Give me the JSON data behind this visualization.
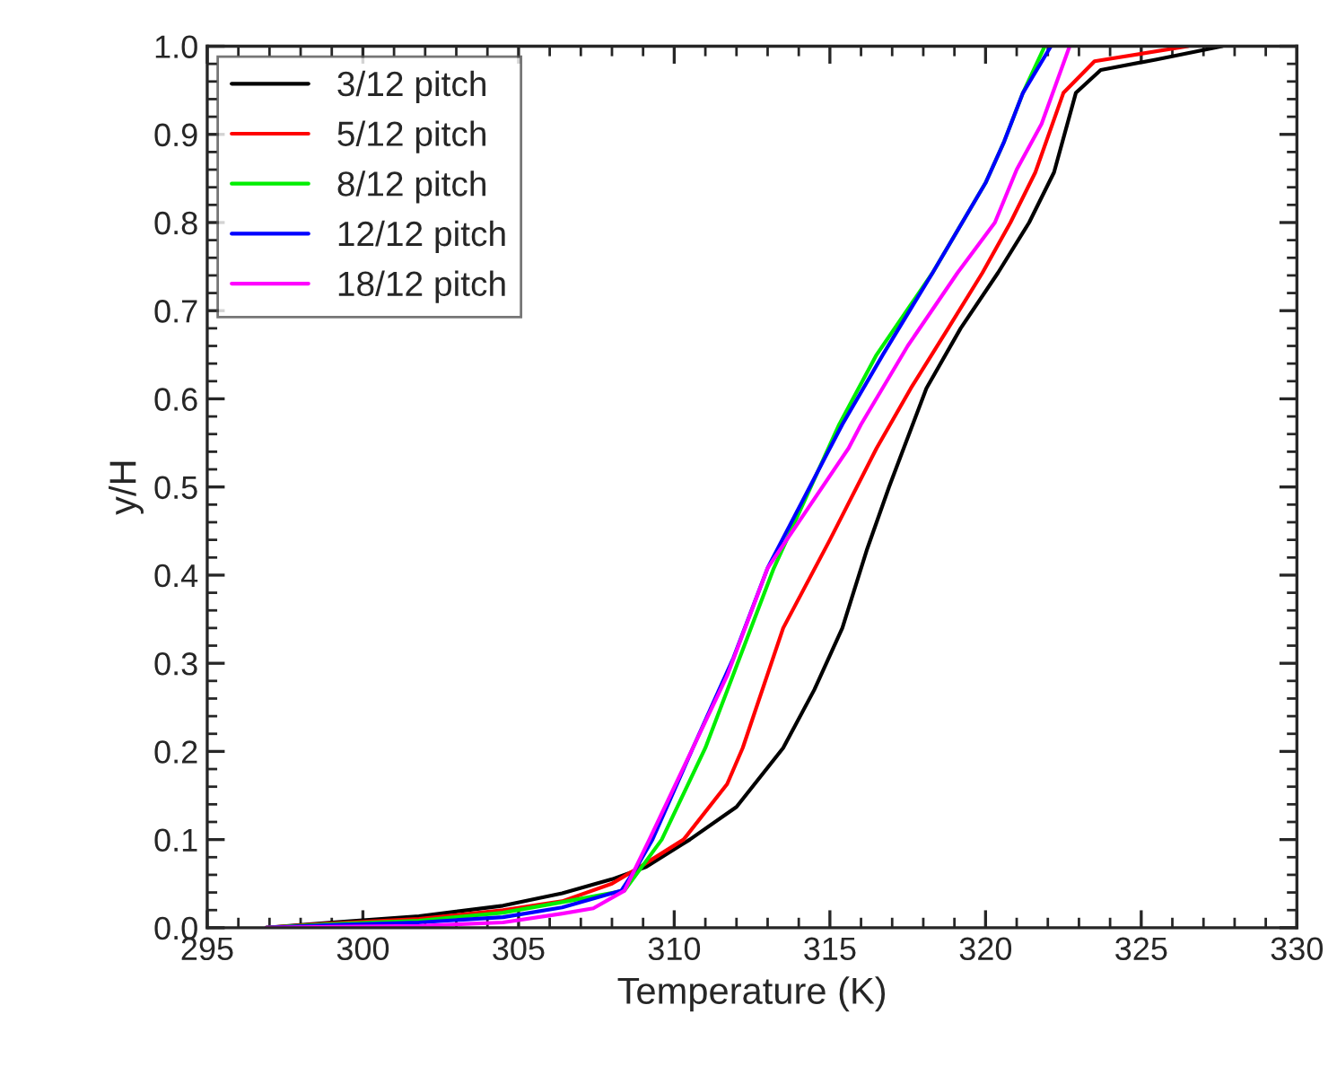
{
  "chart_data": {
    "type": "line",
    "xlabel": "Temperature (K)",
    "ylabel": "y/H",
    "xlim": [
      295,
      330
    ],
    "xticks": [
      295,
      300,
      305,
      310,
      315,
      320,
      325,
      330
    ],
    "ylim": [
      0.0,
      1.0
    ],
    "yticks": [
      {
        "value": 0,
        "label": "0.0"
      },
      0.1,
      0.2,
      0.3,
      0.4,
      0.5,
      0.6,
      0.7,
      0.8,
      0.9,
      {
        "value": 1,
        "label": "1.0"
      }
    ],
    "grid": false,
    "legend": "top left",
    "marker": "none",
    "line_style": "solid",
    "series": [
      {
        "name": "3/12 pitch",
        "color": "#000000",
        "x": [
          296.9,
          299,
          301.8,
          304.5,
          306.4,
          308,
          309.1,
          310.5,
          312.0,
          313.5,
          314.5,
          315.4,
          316.2,
          316.9,
          318.1,
          319.2,
          320.4,
          321.4,
          322.2,
          322.9,
          323.7,
          325.5,
          327.6
        ],
        "values": [
          0,
          0.006,
          0.013,
          0.025,
          0.039,
          0.055,
          0.069,
          0.1,
          0.137,
          0.204,
          0.27,
          0.34,
          0.43,
          0.5,
          0.612,
          0.68,
          0.743,
          0.8,
          0.857,
          0.947,
          0.973,
          0.985,
          1.0
        ]
      },
      {
        "name": "5/12 pitch",
        "color": "#ff0000",
        "x": [
          296.9,
          299,
          301.8,
          304.5,
          306.4,
          308,
          308.9,
          310.3,
          311.7,
          312.2,
          313.5,
          315.0,
          316.5,
          317.6,
          318.8,
          319.9,
          320.8,
          321.6,
          322.5,
          323.5,
          326.5
        ],
        "values": [
          0,
          0.005,
          0.01,
          0.02,
          0.03,
          0.05,
          0.069,
          0.1,
          0.163,
          0.204,
          0.34,
          0.44,
          0.544,
          0.612,
          0.68,
          0.743,
          0.8,
          0.857,
          0.947,
          0.983,
          1.0
        ]
      },
      {
        "name": "8/12 pitch",
        "color": "#00ee00",
        "x": [
          296.9,
          299,
          301.8,
          304.5,
          306.4,
          308.4,
          309.6,
          311.0,
          312.1,
          313.2,
          315.3,
          316.5,
          318.3,
          320.0,
          320.6,
          321.2,
          321.9
        ],
        "values": [
          0,
          0.004,
          0.008,
          0.017,
          0.029,
          0.042,
          0.1,
          0.204,
          0.306,
          0.408,
          0.571,
          0.65,
          0.743,
          0.845,
          0.892,
          0.947,
          1.0
        ]
      },
      {
        "name": "12/12 pitch",
        "color": "#0000ff",
        "x": [
          296.9,
          299,
          301.8,
          304.5,
          306.4,
          308.3,
          308.8,
          309.3,
          310.6,
          311.9,
          313.0,
          315.0,
          315.4,
          316.7,
          318.3,
          320.0,
          320.6,
          321.2,
          322.1
        ],
        "values": [
          0,
          0.003,
          0.006,
          0.012,
          0.023,
          0.042,
          0.069,
          0.1,
          0.204,
          0.306,
          0.408,
          0.544,
          0.571,
          0.65,
          0.743,
          0.845,
          0.892,
          0.947,
          1.0
        ]
      },
      {
        "name": "18/12 pitch",
        "color": "#ff00ff",
        "x": [
          296.9,
          299,
          301.8,
          304.5,
          306.4,
          307.4,
          308.4,
          309.2,
          310.6,
          311.7,
          313.0,
          315.6,
          316.0,
          317.5,
          319.1,
          320.3,
          321.0,
          321.8,
          322.7
        ],
        "values": [
          0,
          0.001,
          0.002,
          0.006,
          0.016,
          0.022,
          0.042,
          0.1,
          0.204,
          0.286,
          0.408,
          0.544,
          0.571,
          0.66,
          0.743,
          0.8,
          0.86,
          0.912,
          1.0
        ]
      }
    ]
  }
}
